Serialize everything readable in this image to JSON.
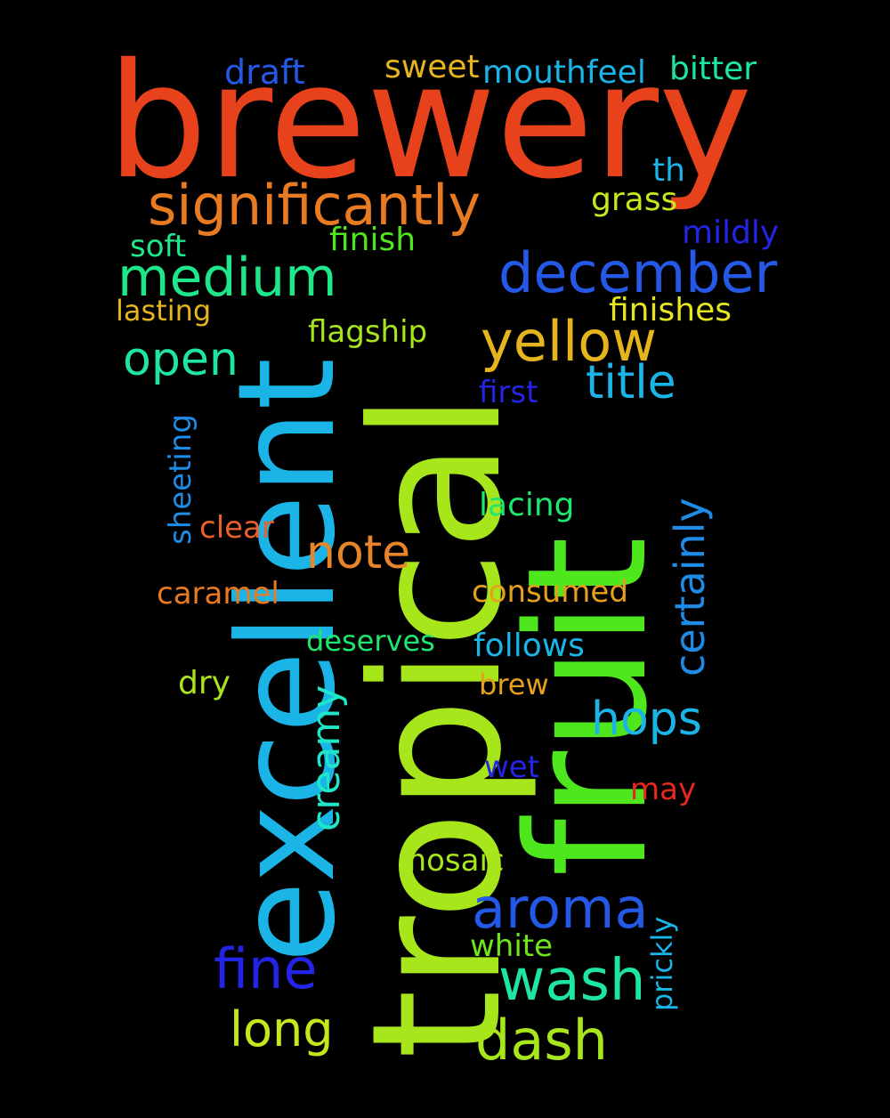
{
  "words": [
    {
      "id": "brewery",
      "text": "brewery",
      "color": "#e8421c"
    },
    {
      "id": "tropical",
      "text": "tropical",
      "color": "#a8e61c"
    },
    {
      "id": "excellent",
      "text": "excellent",
      "color": "#1ab4e6"
    },
    {
      "id": "fruit",
      "text": "fruit",
      "color": "#4ee61c"
    },
    {
      "id": "significantly",
      "text": "significantly",
      "color": "#e87a22"
    },
    {
      "id": "december",
      "text": "december",
      "color": "#2458e6"
    },
    {
      "id": "medium",
      "text": "medium",
      "color": "#1ee68a"
    },
    {
      "id": "yellow",
      "text": "yellow",
      "color": "#e6b41c"
    },
    {
      "id": "open",
      "text": "open",
      "color": "#1ee6a0"
    },
    {
      "id": "title",
      "text": "title",
      "color": "#1ab4e6"
    },
    {
      "id": "note",
      "text": "note",
      "color": "#e8842a"
    },
    {
      "id": "certainly",
      "text": "certainly",
      "color": "#1e8ce6"
    },
    {
      "id": "aroma",
      "text": "aroma",
      "color": "#2458e6"
    },
    {
      "id": "wash",
      "text": "wash",
      "color": "#1ee6a0"
    },
    {
      "id": "fine",
      "text": "fine",
      "color": "#2424e6"
    },
    {
      "id": "dash",
      "text": "dash",
      "color": "#a8e61c"
    },
    {
      "id": "long",
      "text": "long",
      "color": "#c8e61c"
    },
    {
      "id": "hops",
      "text": "hops",
      "color": "#1ab4e6"
    },
    {
      "id": "creamy",
      "text": "creamy",
      "color": "#1ee6c8"
    },
    {
      "id": "draft",
      "text": "draft",
      "color": "#2458e6"
    },
    {
      "id": "sweet",
      "text": "sweet",
      "color": "#e6b41c"
    },
    {
      "id": "mouthfeel",
      "text": "mouthfeel",
      "color": "#1ab4e6"
    },
    {
      "id": "bitter",
      "text": "bitter",
      "color": "#1ee6a0"
    },
    {
      "id": "th",
      "text": "th",
      "color": "#1ab4e6"
    },
    {
      "id": "grass",
      "text": "grass",
      "color": "#c8e61c"
    },
    {
      "id": "mildly",
      "text": "mildly",
      "color": "#2424e6"
    },
    {
      "id": "soft",
      "text": "soft",
      "color": "#1ee68a"
    },
    {
      "id": "finish",
      "text": "finish",
      "color": "#4ee61c"
    },
    {
      "id": "lasting",
      "text": "lasting",
      "color": "#e6b41c"
    },
    {
      "id": "finishes",
      "text": "finishes",
      "color": "#e6e61c"
    },
    {
      "id": "flagship",
      "text": "flagship",
      "color": "#a8e61c"
    },
    {
      "id": "first",
      "text": "first",
      "color": "#2424e6"
    },
    {
      "id": "sheeting",
      "text": "sheeting",
      "color": "#1e8ce6"
    },
    {
      "id": "clear",
      "text": "clear",
      "color": "#e8602a"
    },
    {
      "id": "lacing",
      "text": "lacing",
      "color": "#1ee66e"
    },
    {
      "id": "caramel",
      "text": "caramel",
      "color": "#e87a22"
    },
    {
      "id": "consumed",
      "text": "consumed",
      "color": "#e6a01c"
    },
    {
      "id": "deserves",
      "text": "deserves",
      "color": "#1ee66e"
    },
    {
      "id": "follows",
      "text": "follows",
      "color": "#1ab4e6"
    },
    {
      "id": "dry",
      "text": "dry",
      "color": "#a8e61c"
    },
    {
      "id": "brew",
      "text": "brew",
      "color": "#e6a01c"
    },
    {
      "id": "wet",
      "text": "wet",
      "color": "#2424e6"
    },
    {
      "id": "may",
      "text": "may",
      "color": "#e8281c"
    },
    {
      "id": "mosaic",
      "text": "mosaic",
      "color": "#a8e61c"
    },
    {
      "id": "prickly",
      "text": "prickly",
      "color": "#1ab4e6"
    },
    {
      "id": "white",
      "text": "white",
      "color": "#6ee61c"
    }
  ]
}
